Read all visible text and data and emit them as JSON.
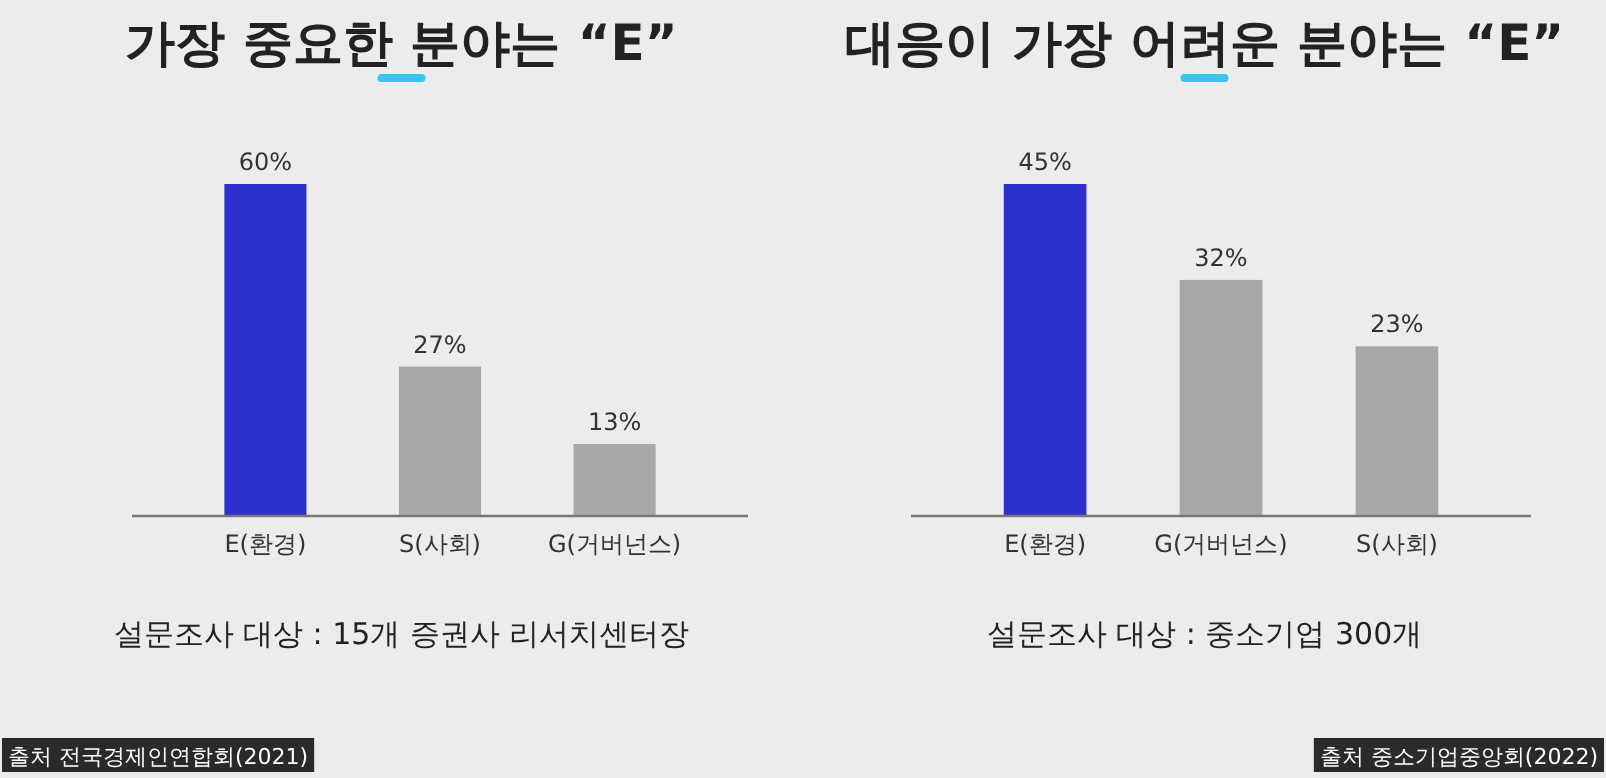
{
  "chart_data": [
    {
      "type": "bar",
      "title": "가장 중요한 분야는 “E”",
      "categories": [
        "E(환경)",
        "S(사회)",
        "G(거버넌스)"
      ],
      "values": [
        60,
        27,
        13
      ],
      "colors": [
        "#2b2fcc",
        "#a8a8a8",
        "#a8a8a8"
      ],
      "value_labels": [
        "60%",
        "27%",
        "13%"
      ],
      "annotations": [
        "설문조사 대상 : 15개 증권사 리서치센터장",
        "출처 전국경제인연합회(2021)"
      ]
    },
    {
      "type": "bar",
      "title": "대응이 가장 어려운 분야는 “E”",
      "categories": [
        "E(환경)",
        "G(거버넌스)",
        "S(사회)"
      ],
      "values": [
        45,
        32,
        23
      ],
      "colors": [
        "#2b2fcc",
        "#a8a8a8",
        "#a8a8a8"
      ],
      "value_labels": [
        "45%",
        "32%",
        "23%"
      ],
      "annotations": [
        "설문조사 대상 : 중소기업 300개",
        "출처 중소기업중앙회(2022)"
      ]
    }
  ]
}
